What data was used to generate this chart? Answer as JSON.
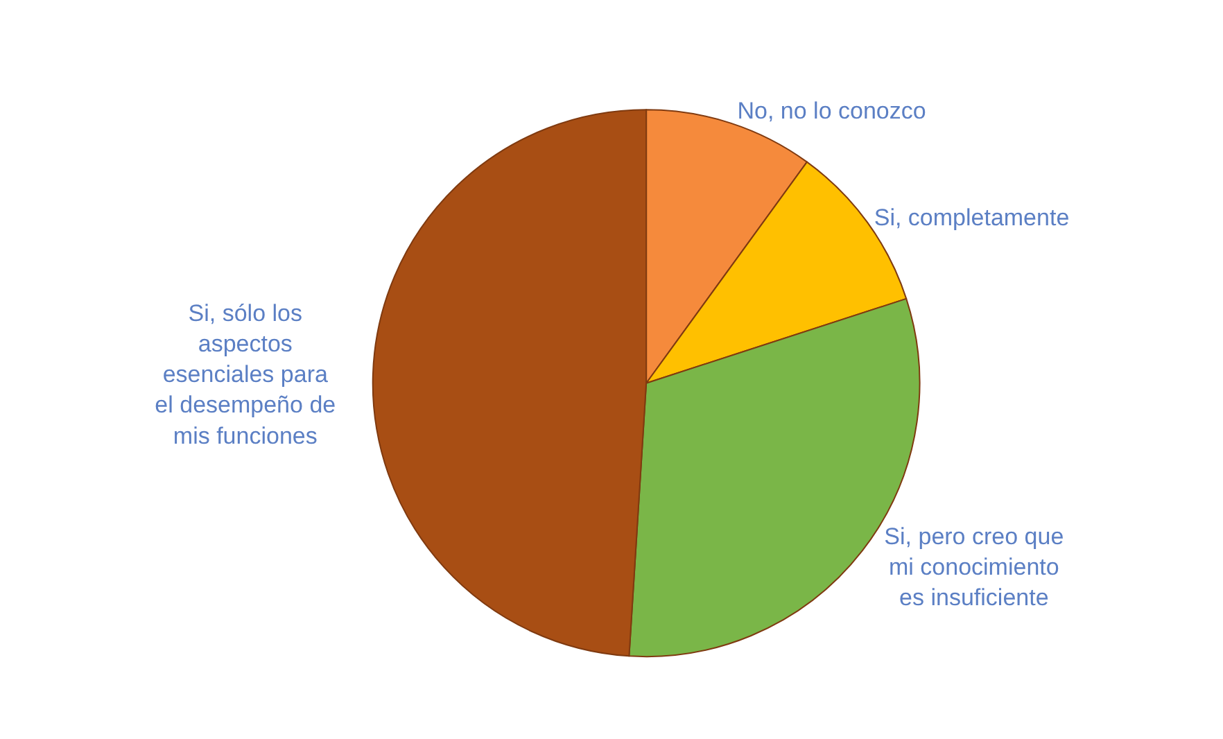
{
  "chart_data": {
    "type": "pie",
    "categories": [
      "No, no lo conozco",
      "Si, completamente",
      "Si, pero creo que mi conocimiento es insuficiente",
      "Si, sólo los aspectos esenciales para el desempeño de mis funciones"
    ],
    "values": [
      10,
      10,
      31,
      49
    ],
    "colors": [
      "#f58a3c",
      "#ffc000",
      "#7ab648",
      "#a84e14"
    ],
    "legend": false
  }
}
